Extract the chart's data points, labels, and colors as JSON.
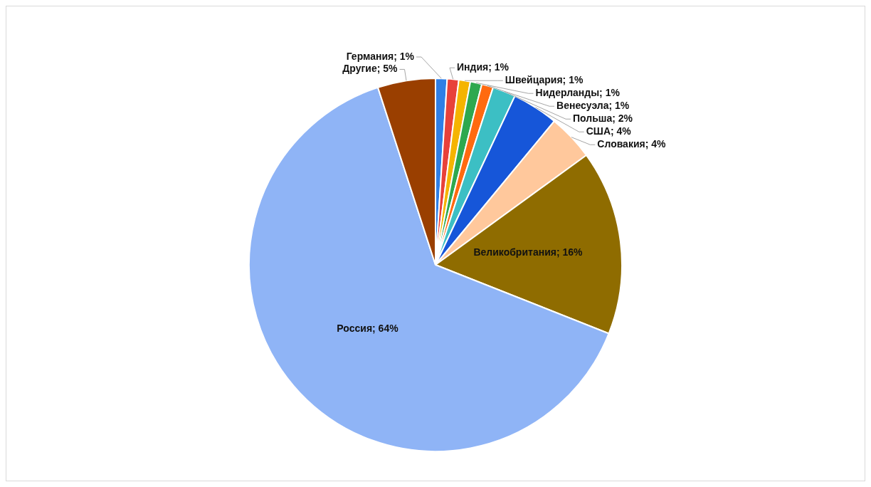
{
  "chart_data": {
    "type": "pie",
    "categories": [
      "Германия",
      "Индия",
      "Швейцария",
      "Нидерланды",
      "Венесуэла",
      "Польша",
      "США",
      "Словакия",
      "Великобритания",
      "Россия",
      "Другие"
    ],
    "values": [
      1,
      1,
      1,
      1,
      1,
      2,
      4,
      4,
      16,
      64,
      5
    ],
    "colors": [
      "#2f7fe6",
      "#e8413a",
      "#f5b400",
      "#2ea84f",
      "#ff6a10",
      "#3cbfc4",
      "#1656d9",
      "#ffc89c",
      "#8f6c00",
      "#8fb4f6",
      "#9a3f00"
    ],
    "value_labels": [
      "; 1%",
      "; 1%",
      "; 1%",
      "; 1%",
      "; 1%",
      "; 2%",
      "; 4%",
      "; 4%",
      "; 16%",
      "; 64%",
      "; 5%"
    ],
    "legend": false
  }
}
